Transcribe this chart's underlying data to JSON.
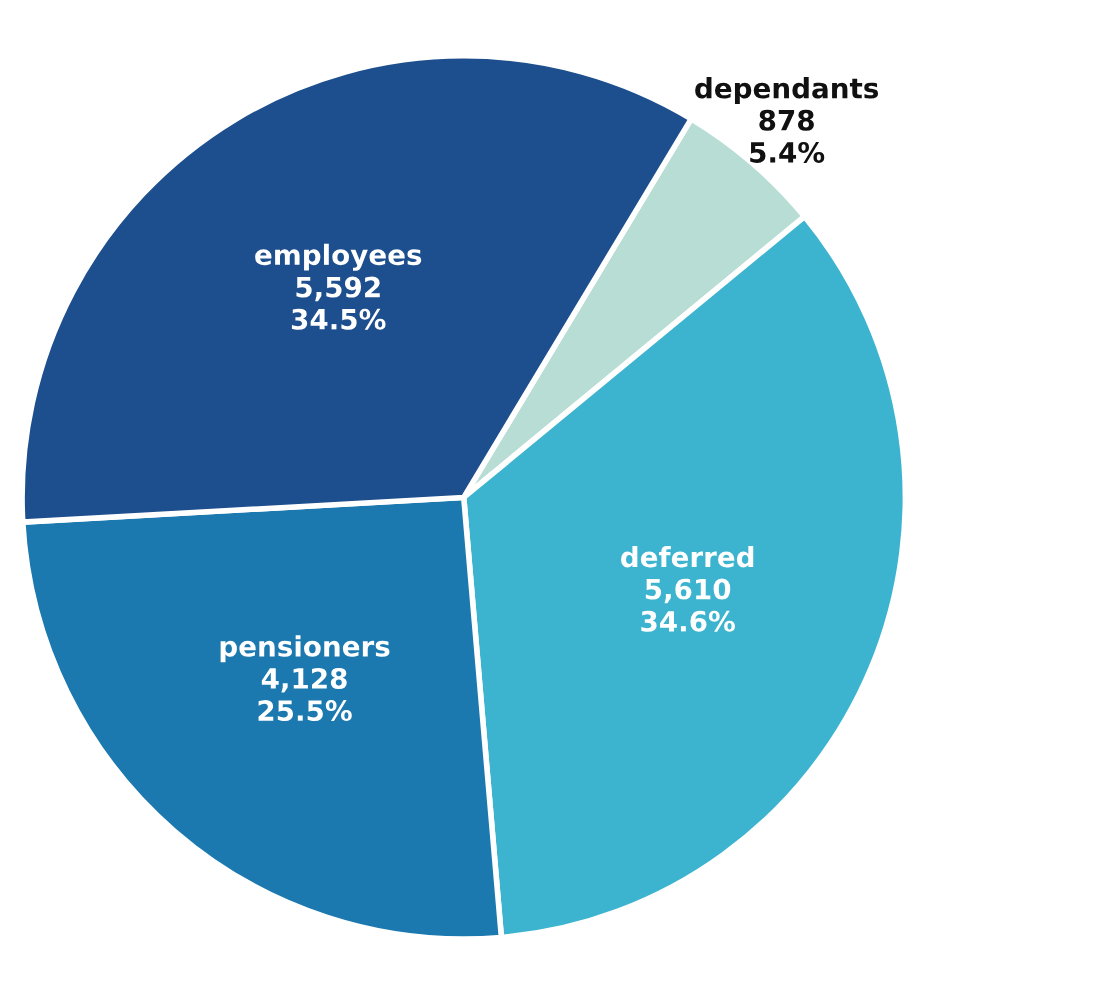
{
  "chart_data": {
    "type": "pie",
    "categories": [
      "dependants",
      "deferred",
      "pensioners",
      "employees"
    ],
    "values": [
      878,
      5610,
      4128,
      5592
    ],
    "value_labels": [
      "878\n5.4%",
      "5,610\n34.6%",
      "4,128\n25.5%",
      "5,592\n34.5%"
    ],
    "colors": [
      "#b7ddd5",
      "#3db4cf",
      "#1b79af",
      "#1d4e8d"
    ]
  }
}
